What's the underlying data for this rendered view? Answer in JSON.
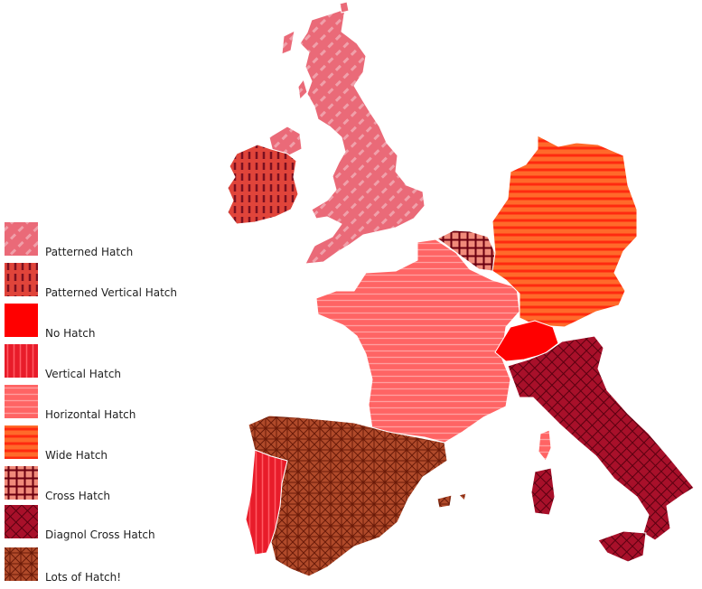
{
  "colors": {
    "patterned": "#ea6a78",
    "patterned_line": "#f0a0aa",
    "patterned_vertical": "#e0443a",
    "patterned_vertical_line": "#7a1020",
    "no_hatch": "#ff0000",
    "vertical": "#e81c2a",
    "vertical_line": "#ff5a64",
    "horizontal": "#ff6464",
    "horizontal_line": "#ffa0a0",
    "wide": "#ff6a2a",
    "wide_line": "#ff2a10",
    "cross": "#f08a7a",
    "cross_line": "#6a0010",
    "diag_cross": "#a8102a",
    "diag_cross_line": "#5a0010",
    "lots": "#b04a2a",
    "lots_line": "#6a1a08"
  },
  "legend": [
    {
      "label": "Patterned Hatch",
      "pattern": "pat-patterned",
      "icon": "patterned-hatch-swatch"
    },
    {
      "label": "Patterned Vertical Hatch",
      "pattern": "pat-patterned-vertical",
      "icon": "patterned-vertical-hatch-swatch"
    },
    {
      "label": "No Hatch",
      "pattern": "pat-none",
      "icon": "no-hatch-swatch"
    },
    {
      "label": "Vertical Hatch",
      "pattern": "pat-vertical",
      "icon": "vertical-hatch-swatch"
    },
    {
      "label": "Horizontal Hatch",
      "pattern": "pat-horizontal",
      "icon": "horizontal-hatch-swatch"
    },
    {
      "label": "Wide Hatch",
      "pattern": "pat-wide",
      "icon": "wide-hatch-swatch"
    },
    {
      "label": "Cross Hatch",
      "pattern": "pat-cross",
      "icon": "cross-hatch-swatch"
    },
    {
      "label": "Diagnol Cross Hatch",
      "pattern": "pat-diag",
      "icon": "diagonal-cross-hatch-swatch"
    },
    {
      "label": "Lots of Hatch!",
      "pattern": "pat-lots",
      "icon": "lots-of-hatch-swatch"
    }
  ],
  "regions": [
    {
      "name": "great-britain-region",
      "pattern": "pat-patterned"
    },
    {
      "name": "ireland-region",
      "pattern": "pat-patterned-vertical"
    },
    {
      "name": "switzerland-region",
      "pattern": "pat-none"
    },
    {
      "name": "portugal-region",
      "pattern": "pat-vertical"
    },
    {
      "name": "france-region",
      "pattern": "pat-horizontal"
    },
    {
      "name": "germany-region",
      "pattern": "pat-wide"
    },
    {
      "name": "belgium-region",
      "pattern": "pat-cross"
    },
    {
      "name": "italy-region",
      "pattern": "pat-diag"
    },
    {
      "name": "spain-region",
      "pattern": "pat-lots"
    }
  ]
}
